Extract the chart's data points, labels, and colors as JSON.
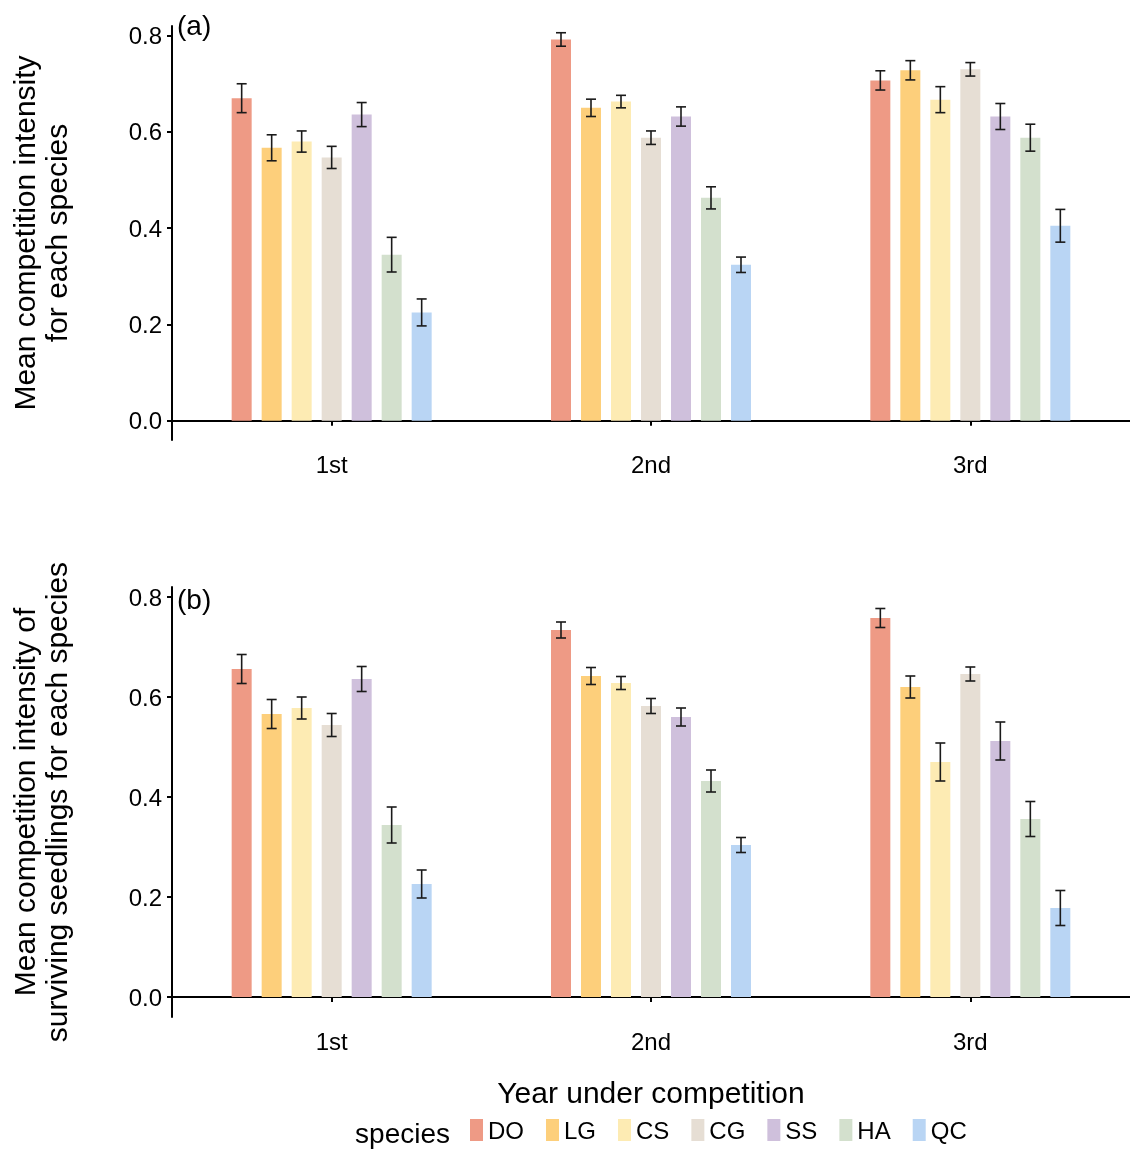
{
  "chart_data": [
    {
      "type": "bar",
      "title": "(a)",
      "ylabel": "Mean competition intensity\nfor each species",
      "categories": [
        "1st",
        "2nd",
        "3rd"
      ],
      "ylim": [
        -0.04,
        0.82
      ],
      "yticks": [
        {
          "value": 0,
          "label": "0.0"
        },
        {
          "value": 0.2,
          "label": "0.2"
        },
        {
          "value": 0.4,
          "label": "0.4"
        },
        {
          "value": 0.6,
          "label": "0.6"
        },
        {
          "value": 0.8,
          "label": "0.8"
        }
      ],
      "grid": false,
      "legend": false,
      "series": [
        {
          "color": "#ee9a85",
          "values": [
            0.67,
            0.792,
            0.707
          ],
          "errors": [
            0.03,
            0.014,
            0.02
          ]
        },
        {
          "color": "#fdcf7b",
          "values": [
            0.567,
            0.65,
            0.728
          ],
          "errors": [
            0.027,
            0.018,
            0.02
          ]
        },
        {
          "color": "#fdebb3",
          "values": [
            0.58,
            0.663,
            0.667
          ],
          "errors": [
            0.022,
            0.013,
            0.027
          ]
        },
        {
          "color": "#e6ded4",
          "values": [
            0.547,
            0.588,
            0.73
          ],
          "errors": [
            0.023,
            0.014,
            0.014
          ]
        },
        {
          "color": "#cfc0dc",
          "values": [
            0.636,
            0.632,
            0.632
          ],
          "errors": [
            0.025,
            0.02,
            0.027
          ]
        },
        {
          "color": "#d3e0cd",
          "values": [
            0.345,
            0.463,
            0.588
          ],
          "errors": [
            0.036,
            0.023,
            0.028
          ]
        },
        {
          "color": "#b9d5f4",
          "values": [
            0.225,
            0.324,
            0.405
          ],
          "errors": [
            0.028,
            0.016,
            0.034
          ]
        }
      ]
    },
    {
      "type": "bar",
      "title": "(b)",
      "ylabel": "Mean competition intensity of\nsurviving seedlings for each species",
      "xlabel": "Year under competition",
      "categories": [
        "1st",
        "2nd",
        "3rd"
      ],
      "ylim": [
        -0.04,
        0.82
      ],
      "yticks": [
        {
          "value": 0,
          "label": "0.0"
        },
        {
          "value": 0.2,
          "label": "0.2"
        },
        {
          "value": 0.4,
          "label": "0.4"
        },
        {
          "value": 0.6,
          "label": "0.6"
        },
        {
          "value": 0.8,
          "label": "0.8"
        }
      ],
      "grid": false,
      "legend": "bottom",
      "legend_title": "species",
      "series": [
        {
          "name": "DO",
          "color": "#ee9a85",
          "values": [
            0.656,
            0.734,
            0.758
          ],
          "errors": [
            0.029,
            0.016,
            0.019
          ]
        },
        {
          "name": "LG",
          "color": "#fdcf7b",
          "values": [
            0.566,
            0.642,
            0.62
          ],
          "errors": [
            0.029,
            0.017,
            0.022
          ]
        },
        {
          "name": "CS",
          "color": "#fdebb3",
          "values": [
            0.578,
            0.628,
            0.47
          ],
          "errors": [
            0.022,
            0.013,
            0.038
          ]
        },
        {
          "name": "CG",
          "color": "#e6ded4",
          "values": [
            0.544,
            0.582,
            0.646
          ],
          "errors": [
            0.023,
            0.015,
            0.014
          ]
        },
        {
          "name": "SS",
          "color": "#cfc0dc",
          "values": [
            0.636,
            0.56,
            0.512
          ],
          "errors": [
            0.025,
            0.018,
            0.038
          ]
        },
        {
          "name": "HA",
          "color": "#d3e0cd",
          "values": [
            0.344,
            0.432,
            0.356
          ],
          "errors": [
            0.036,
            0.022,
            0.035
          ]
        },
        {
          "name": "QC",
          "color": "#b9d5f4",
          "values": [
            0.226,
            0.304,
            0.178
          ],
          "errors": [
            0.028,
            0.015,
            0.035
          ]
        }
      ]
    }
  ]
}
